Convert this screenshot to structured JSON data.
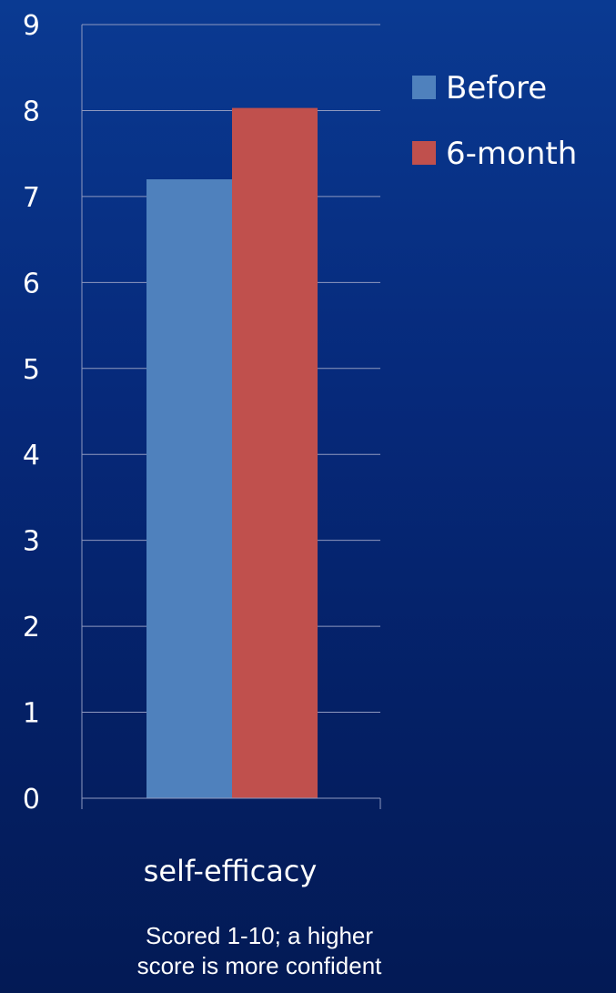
{
  "chart_data": {
    "type": "bar",
    "categories": [
      "self-efficacy"
    ],
    "series": [
      {
        "name": "Before",
        "values": [
          7.2
        ],
        "color": "#4f81bd"
      },
      {
        "name": "6-month",
        "values": [
          8.03
        ],
        "color": "#c0504d"
      }
    ],
    "ylim": [
      0,
      9
    ],
    "yticks": [
      "0",
      "1",
      "2",
      "3",
      "4",
      "5",
      "6",
      "7",
      "8",
      "9"
    ],
    "grid": true,
    "legend_position": "right"
  },
  "footnote": {
    "line1": "Scored 1-10;  a higher",
    "line2": "score is more confident"
  }
}
